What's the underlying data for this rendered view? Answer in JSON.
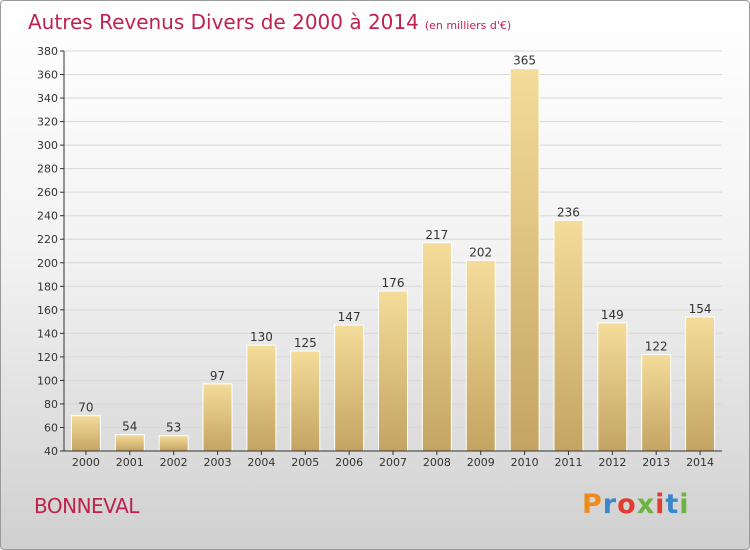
{
  "header": {
    "title": "Autres Revenus Divers de 2000 à 2014",
    "subtitle": "(en milliers d'€)"
  },
  "footer": {
    "commune": "BONNEVAL",
    "brand": "Proxiti",
    "brand_colors": [
      "#f08a1c",
      "#3a87cc",
      "#e43b2f",
      "#6cb33f",
      "#e43b2f",
      "#3a87cc",
      "#6cb33f"
    ]
  },
  "chart_data": {
    "type": "bar",
    "title": "Autres Revenus Divers de 2000 à 2014",
    "subtitle": "(en milliers d'€)",
    "categories": [
      "2000",
      "2001",
      "2002",
      "2003",
      "2004",
      "2005",
      "2006",
      "2007",
      "2008",
      "2009",
      "2010",
      "2011",
      "2012",
      "2013",
      "2014"
    ],
    "values": [
      70,
      54,
      53,
      97,
      130,
      125,
      147,
      176,
      217,
      202,
      365,
      236,
      149,
      122,
      154
    ],
    "ylim": [
      40,
      380
    ],
    "yticks": [
      40,
      60,
      80,
      100,
      120,
      140,
      160,
      180,
      200,
      220,
      240,
      260,
      280,
      300,
      320,
      340,
      360,
      380
    ],
    "grid": true,
    "bar_color_top": "#f4dc9a",
    "bar_color_bottom": "#c4a462",
    "label_color": "#333333",
    "axis_color": "#333333",
    "grid_color": "#d8d8d8"
  }
}
